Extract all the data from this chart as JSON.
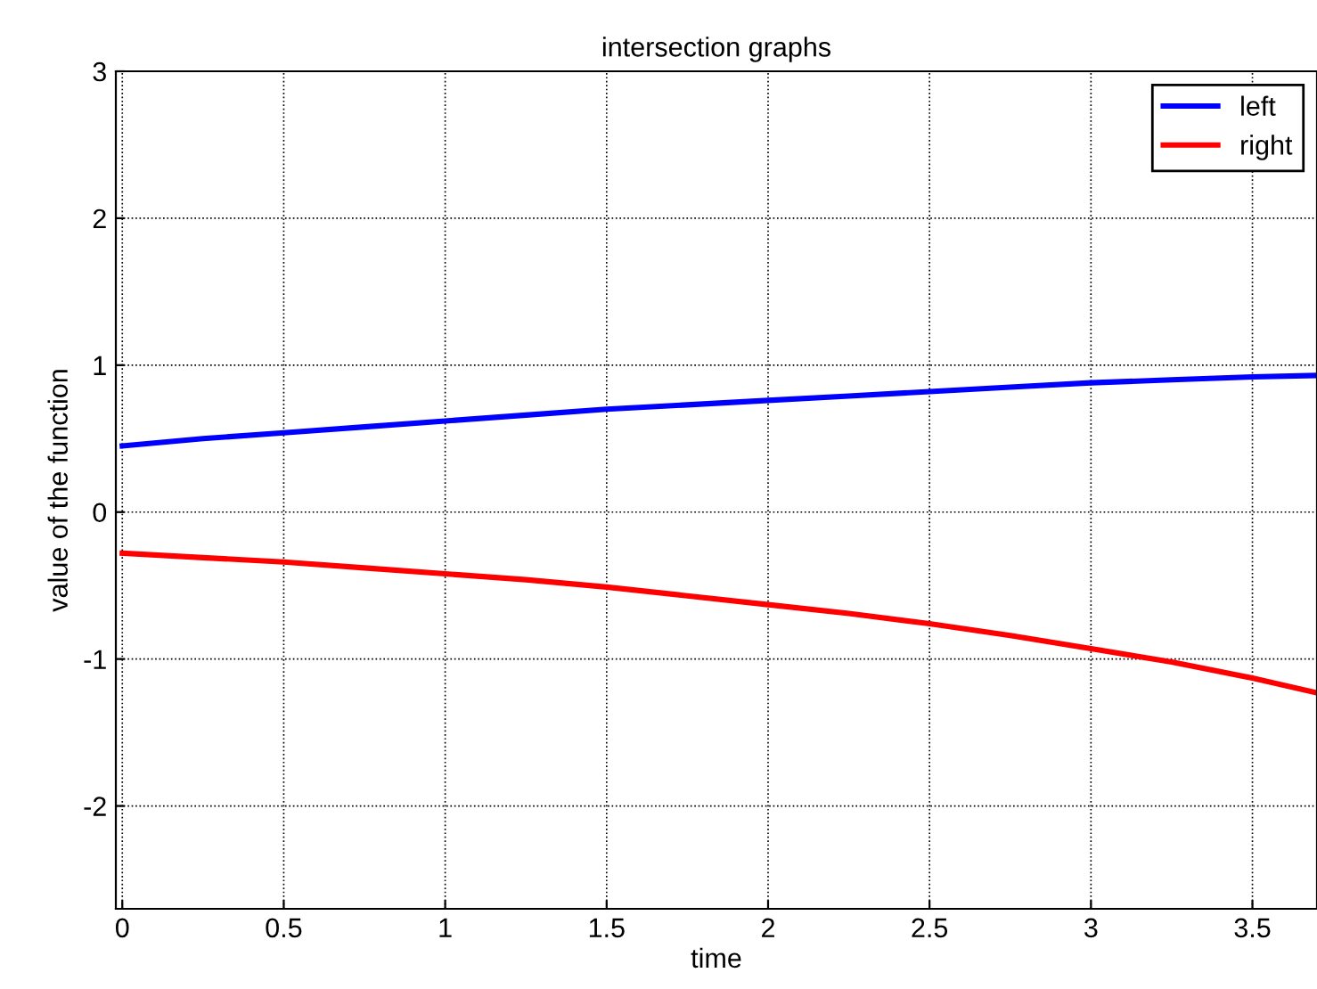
{
  "chart_data": {
    "type": "line",
    "title": "intersection graphs",
    "xlabel": "time",
    "ylabel": "value of the function",
    "x": [
      0,
      0.25,
      0.5,
      0.75,
      1,
      1.25,
      1.5,
      1.75,
      2,
      2.25,
      2.5,
      2.75,
      3,
      3.25,
      3.5,
      3.7
    ],
    "series": [
      {
        "name": "left",
        "color": "#0000ff",
        "values": [
          0.45,
          0.5,
          0.54,
          0.58,
          0.62,
          0.66,
          0.7,
          0.73,
          0.76,
          0.79,
          0.82,
          0.85,
          0.88,
          0.9,
          0.92,
          0.93
        ]
      },
      {
        "name": "right",
        "color": "#ff0000",
        "values": [
          -0.28,
          -0.31,
          -0.34,
          -0.38,
          -0.42,
          -0.46,
          -0.51,
          -0.57,
          -0.63,
          -0.69,
          -0.76,
          -0.84,
          -0.93,
          -1.02,
          -1.13,
          -1.23
        ]
      }
    ],
    "xlim": [
      -0.02,
      3.7
    ],
    "ylim": [
      -2.7,
      3
    ],
    "xticks": [
      0,
      0.5,
      1,
      1.5,
      2,
      2.5,
      3,
      3.5
    ],
    "yticks": [
      -2,
      -1,
      0,
      1,
      2,
      3
    ],
    "grid": true,
    "legend": "top right",
    "marker": "none",
    "line_style": "solid"
  }
}
